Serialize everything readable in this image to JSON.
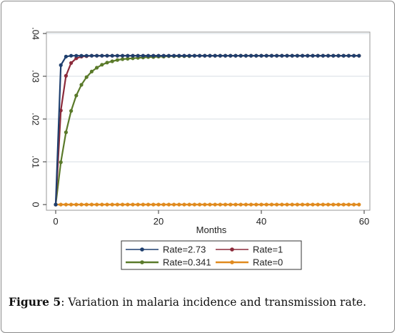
{
  "figure": {
    "caption_label": "Figure 5",
    "caption_sep": ":",
    "caption_text": " Variation in malaria incidence and transmission rate."
  },
  "chart_data": {
    "type": "line",
    "xlabel": "Months",
    "ylabel": "",
    "xlim": [
      0,
      60
    ],
    "ylim": [
      0,
      0.04
    ],
    "x_ticks": [
      0,
      20,
      40,
      60
    ],
    "y_ticks": [
      0,
      0.01,
      0.02,
      0.03,
      0.04
    ],
    "x_tick_labels": [
      "0",
      "20",
      "40",
      "60"
    ],
    "y_tick_labels": [
      "0",
      ".01",
      ".02",
      ".03",
      ".04"
    ],
    "grid": "horizontal",
    "legend_position": "bottom",
    "equilibrium": 0.0348,
    "x": [
      0,
      1,
      2,
      3,
      4,
      5,
      6,
      7,
      8,
      9,
      10,
      11,
      12,
      13,
      14,
      15,
      16,
      17,
      18,
      19,
      20,
      21,
      22,
      23,
      24,
      25,
      26,
      27,
      28,
      29,
      30,
      31,
      32,
      33,
      34,
      35,
      36,
      37,
      38,
      39,
      40,
      41,
      42,
      43,
      44,
      45,
      46,
      47,
      48,
      49,
      50,
      51,
      52,
      53,
      54,
      55,
      56,
      57,
      58,
      59
    ],
    "series": [
      {
        "name": "Rate=2.73",
        "color": "#1f3f6e",
        "rate": 2.73,
        "values": [
          0,
          0.0326,
          0.0346,
          0.0348,
          0.0348,
          0.0348,
          0.0348,
          0.0348,
          0.0348,
          0.0348,
          0.0348,
          0.0348,
          0.0348,
          0.0348,
          0.0348,
          0.0348,
          0.0348,
          0.0348,
          0.0348,
          0.0348,
          0.0348,
          0.0348,
          0.0348,
          0.0348,
          0.0348,
          0.0348,
          0.0348,
          0.0348,
          0.0348,
          0.0348,
          0.0348,
          0.0348,
          0.0348,
          0.0348,
          0.0348,
          0.0348,
          0.0348,
          0.0348,
          0.0348,
          0.0348,
          0.0348,
          0.0348,
          0.0348,
          0.0348,
          0.0348,
          0.0348,
          0.0348,
          0.0348,
          0.0348,
          0.0348,
          0.0348,
          0.0348,
          0.0348,
          0.0348,
          0.0348,
          0.0348,
          0.0348,
          0.0348,
          0.0348,
          0.0348
        ]
      },
      {
        "name": "Rate=1",
        "color": "#8b2a3a",
        "rate": 1,
        "values": [
          0,
          0.022,
          0.0301,
          0.0331,
          0.0342,
          0.0346,
          0.0347,
          0.0348,
          0.0348,
          0.0348,
          0.0348,
          0.0348,
          0.0348,
          0.0348,
          0.0348,
          0.0348,
          0.0348,
          0.0348,
          0.0348,
          0.0348,
          0.0348,
          0.0348,
          0.0348,
          0.0348,
          0.0348,
          0.0348,
          0.0348,
          0.0348,
          0.0348,
          0.0348,
          0.0348,
          0.0348,
          0.0348,
          0.0348,
          0.0348,
          0.0348,
          0.0348,
          0.0348,
          0.0348,
          0.0348,
          0.0348,
          0.0348,
          0.0348,
          0.0348,
          0.0348,
          0.0348,
          0.0348,
          0.0348,
          0.0348,
          0.0348,
          0.0348,
          0.0348,
          0.0348,
          0.0348,
          0.0348,
          0.0348,
          0.0348,
          0.0348,
          0.0348,
          0.0348
        ]
      },
      {
        "name": "Rate=0.341",
        "color": "#5a7a2a",
        "rate": 0.341,
        "values": [
          0,
          0.0099,
          0.0169,
          0.0219,
          0.0255,
          0.028,
          0.0298,
          0.0311,
          0.032,
          0.0327,
          0.0332,
          0.0335,
          0.0338,
          0.034,
          0.0341,
          0.0342,
          0.0343,
          0.0344,
          0.0345,
          0.0345,
          0.0346,
          0.0346,
          0.0347,
          0.0347,
          0.0347,
          0.0347,
          0.0347,
          0.0348,
          0.0348,
          0.0348,
          0.0348,
          0.0348,
          0.0348,
          0.0348,
          0.0348,
          0.0348,
          0.0348,
          0.0348,
          0.0348,
          0.0348,
          0.0348,
          0.0348,
          0.0348,
          0.0348,
          0.0348,
          0.0348,
          0.0348,
          0.0348,
          0.0348,
          0.0348,
          0.0348,
          0.0348,
          0.0348,
          0.0348,
          0.0348,
          0.0348,
          0.0348,
          0.0348,
          0.0348,
          0.0348
        ]
      },
      {
        "name": "Rate=0",
        "color": "#e08a1e",
        "rate": 0,
        "values": [
          0,
          0,
          0,
          0,
          0,
          0,
          0,
          0,
          0,
          0,
          0,
          0,
          0,
          0,
          0,
          0,
          0,
          0,
          0,
          0,
          0,
          0,
          0,
          0,
          0,
          0,
          0,
          0,
          0,
          0,
          0,
          0,
          0,
          0,
          0,
          0,
          0,
          0,
          0,
          0,
          0,
          0,
          0,
          0,
          0,
          0,
          0,
          0,
          0,
          0,
          0,
          0,
          0,
          0,
          0,
          0,
          0,
          0,
          0,
          0
        ]
      }
    ]
  }
}
